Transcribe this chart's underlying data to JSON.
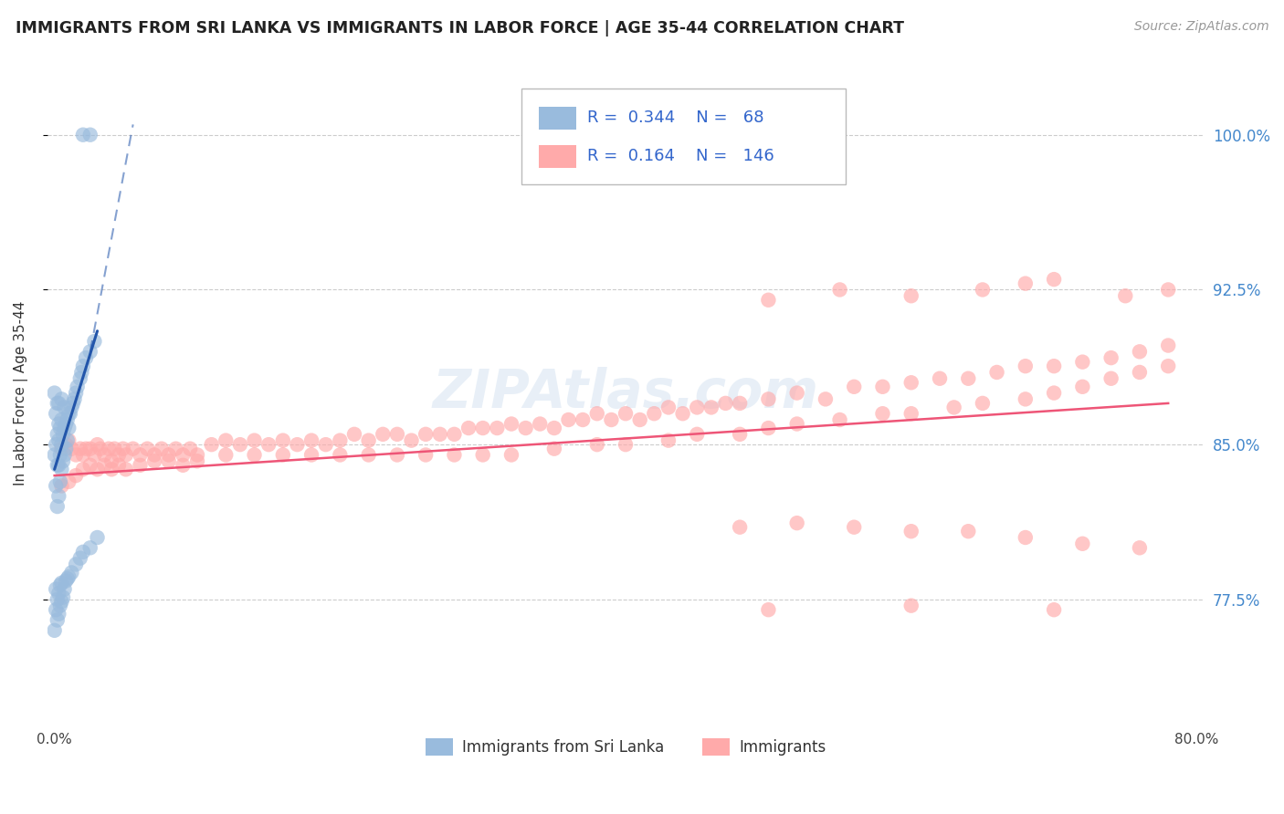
{
  "title": "IMMIGRANTS FROM SRI LANKA VS IMMIGRANTS IN LABOR FORCE | AGE 35-44 CORRELATION CHART",
  "source": "Source: ZipAtlas.com",
  "ylabel": "In Labor Force | Age 35-44",
  "watermark": "ZIPAtlas.com",
  "legend1_R": "0.344",
  "legend1_N": "68",
  "legend2_R": "0.164",
  "legend2_N": "146",
  "legend1_label": "Immigrants from Sri Lanka",
  "legend2_label": "Immigrants",
  "blue_color": "#99BBDD",
  "pink_color": "#FFAAAA",
  "blue_line_color": "#2255AA",
  "pink_line_color": "#EE5577",
  "ytick_labels": [
    "77.5%",
    "85.0%",
    "92.5%",
    "100.0%"
  ],
  "ytick_values": [
    0.775,
    0.85,
    0.925,
    1.0
  ],
  "xlim": [
    -0.005,
    0.805
  ],
  "ylim": [
    0.715,
    1.035
  ],
  "blue_x": [
    0.0,
    0.0,
    0.001,
    0.001,
    0.001,
    0.002,
    0.002,
    0.002,
    0.002,
    0.003,
    0.003,
    0.003,
    0.003,
    0.003,
    0.004,
    0.004,
    0.004,
    0.005,
    0.005,
    0.005,
    0.005,
    0.006,
    0.006,
    0.007,
    0.007,
    0.007,
    0.008,
    0.008,
    0.009,
    0.009,
    0.01,
    0.01,
    0.011,
    0.012,
    0.013,
    0.014,
    0.015,
    0.016,
    0.018,
    0.019,
    0.02,
    0.022,
    0.025,
    0.028,
    0.0,
    0.001,
    0.001,
    0.002,
    0.002,
    0.003,
    0.003,
    0.004,
    0.004,
    0.005,
    0.005,
    0.006,
    0.007,
    0.008,
    0.009,
    0.01,
    0.012,
    0.015,
    0.018,
    0.02,
    0.025,
    0.03,
    0.025,
    0.02
  ],
  "blue_y": [
    0.845,
    0.875,
    0.83,
    0.85,
    0.865,
    0.82,
    0.84,
    0.855,
    0.87,
    0.825,
    0.84,
    0.852,
    0.86,
    0.87,
    0.832,
    0.845,
    0.858,
    0.838,
    0.85,
    0.862,
    0.872,
    0.842,
    0.855,
    0.845,
    0.858,
    0.868,
    0.848,
    0.86,
    0.852,
    0.862,
    0.858,
    0.865,
    0.865,
    0.868,
    0.87,
    0.872,
    0.875,
    0.878,
    0.882,
    0.885,
    0.888,
    0.892,
    0.895,
    0.9,
    0.76,
    0.77,
    0.78,
    0.765,
    0.775,
    0.768,
    0.778,
    0.772,
    0.782,
    0.774,
    0.783,
    0.776,
    0.78,
    0.784,
    0.785,
    0.786,
    0.788,
    0.792,
    0.795,
    0.798,
    0.8,
    0.805,
    1.0,
    1.0
  ],
  "pink_x": [
    0.005,
    0.008,
    0.01,
    0.012,
    0.015,
    0.018,
    0.02,
    0.022,
    0.025,
    0.028,
    0.03,
    0.032,
    0.035,
    0.038,
    0.04,
    0.042,
    0.045,
    0.048,
    0.05,
    0.055,
    0.06,
    0.065,
    0.07,
    0.075,
    0.08,
    0.085,
    0.09,
    0.095,
    0.1,
    0.11,
    0.12,
    0.13,
    0.14,
    0.15,
    0.16,
    0.17,
    0.18,
    0.19,
    0.2,
    0.21,
    0.22,
    0.23,
    0.24,
    0.25,
    0.26,
    0.27,
    0.28,
    0.29,
    0.3,
    0.31,
    0.32,
    0.33,
    0.34,
    0.35,
    0.36,
    0.37,
    0.38,
    0.39,
    0.4,
    0.41,
    0.42,
    0.43,
    0.44,
    0.45,
    0.46,
    0.47,
    0.48,
    0.5,
    0.52,
    0.54,
    0.56,
    0.58,
    0.6,
    0.62,
    0.64,
    0.66,
    0.68,
    0.7,
    0.72,
    0.74,
    0.76,
    0.78,
    0.005,
    0.01,
    0.015,
    0.02,
    0.025,
    0.03,
    0.035,
    0.04,
    0.045,
    0.05,
    0.06,
    0.07,
    0.08,
    0.09,
    0.1,
    0.12,
    0.14,
    0.16,
    0.18,
    0.2,
    0.22,
    0.24,
    0.26,
    0.28,
    0.3,
    0.32,
    0.35,
    0.38,
    0.4,
    0.43,
    0.45,
    0.48,
    0.5,
    0.52,
    0.55,
    0.58,
    0.6,
    0.63,
    0.65,
    0.68,
    0.7,
    0.72,
    0.74,
    0.76,
    0.78,
    0.5,
    0.55,
    0.6,
    0.65,
    0.68,
    0.7,
    0.75,
    0.78,
    0.48,
    0.52,
    0.56,
    0.6,
    0.64,
    0.68,
    0.72,
    0.76,
    0.5,
    0.6,
    0.7
  ],
  "pink_y": [
    0.848,
    0.85,
    0.852,
    0.848,
    0.845,
    0.848,
    0.845,
    0.848,
    0.848,
    0.845,
    0.85,
    0.848,
    0.845,
    0.848,
    0.842,
    0.848,
    0.845,
    0.848,
    0.845,
    0.848,
    0.845,
    0.848,
    0.845,
    0.848,
    0.845,
    0.848,
    0.845,
    0.848,
    0.845,
    0.85,
    0.852,
    0.85,
    0.852,
    0.85,
    0.852,
    0.85,
    0.852,
    0.85,
    0.852,
    0.855,
    0.852,
    0.855,
    0.855,
    0.852,
    0.855,
    0.855,
    0.855,
    0.858,
    0.858,
    0.858,
    0.86,
    0.858,
    0.86,
    0.858,
    0.862,
    0.862,
    0.865,
    0.862,
    0.865,
    0.862,
    0.865,
    0.868,
    0.865,
    0.868,
    0.868,
    0.87,
    0.87,
    0.872,
    0.875,
    0.872,
    0.878,
    0.878,
    0.88,
    0.882,
    0.882,
    0.885,
    0.888,
    0.888,
    0.89,
    0.892,
    0.895,
    0.898,
    0.83,
    0.832,
    0.835,
    0.838,
    0.84,
    0.838,
    0.84,
    0.838,
    0.84,
    0.838,
    0.84,
    0.842,
    0.842,
    0.84,
    0.842,
    0.845,
    0.845,
    0.845,
    0.845,
    0.845,
    0.845,
    0.845,
    0.845,
    0.845,
    0.845,
    0.845,
    0.848,
    0.85,
    0.85,
    0.852,
    0.855,
    0.855,
    0.858,
    0.86,
    0.862,
    0.865,
    0.865,
    0.868,
    0.87,
    0.872,
    0.875,
    0.878,
    0.882,
    0.885,
    0.888,
    0.92,
    0.925,
    0.922,
    0.925,
    0.928,
    0.93,
    0.922,
    0.925,
    0.81,
    0.812,
    0.81,
    0.808,
    0.808,
    0.805,
    0.802,
    0.8,
    0.77,
    0.772,
    0.77
  ],
  "blue_trend": [
    0.0,
    0.03,
    0.838,
    0.905
  ],
  "blue_dash_trend": [
    0.025,
    0.055,
    0.895,
    1.005
  ],
  "pink_trend": [
    0.0,
    0.78,
    0.835,
    0.87
  ]
}
